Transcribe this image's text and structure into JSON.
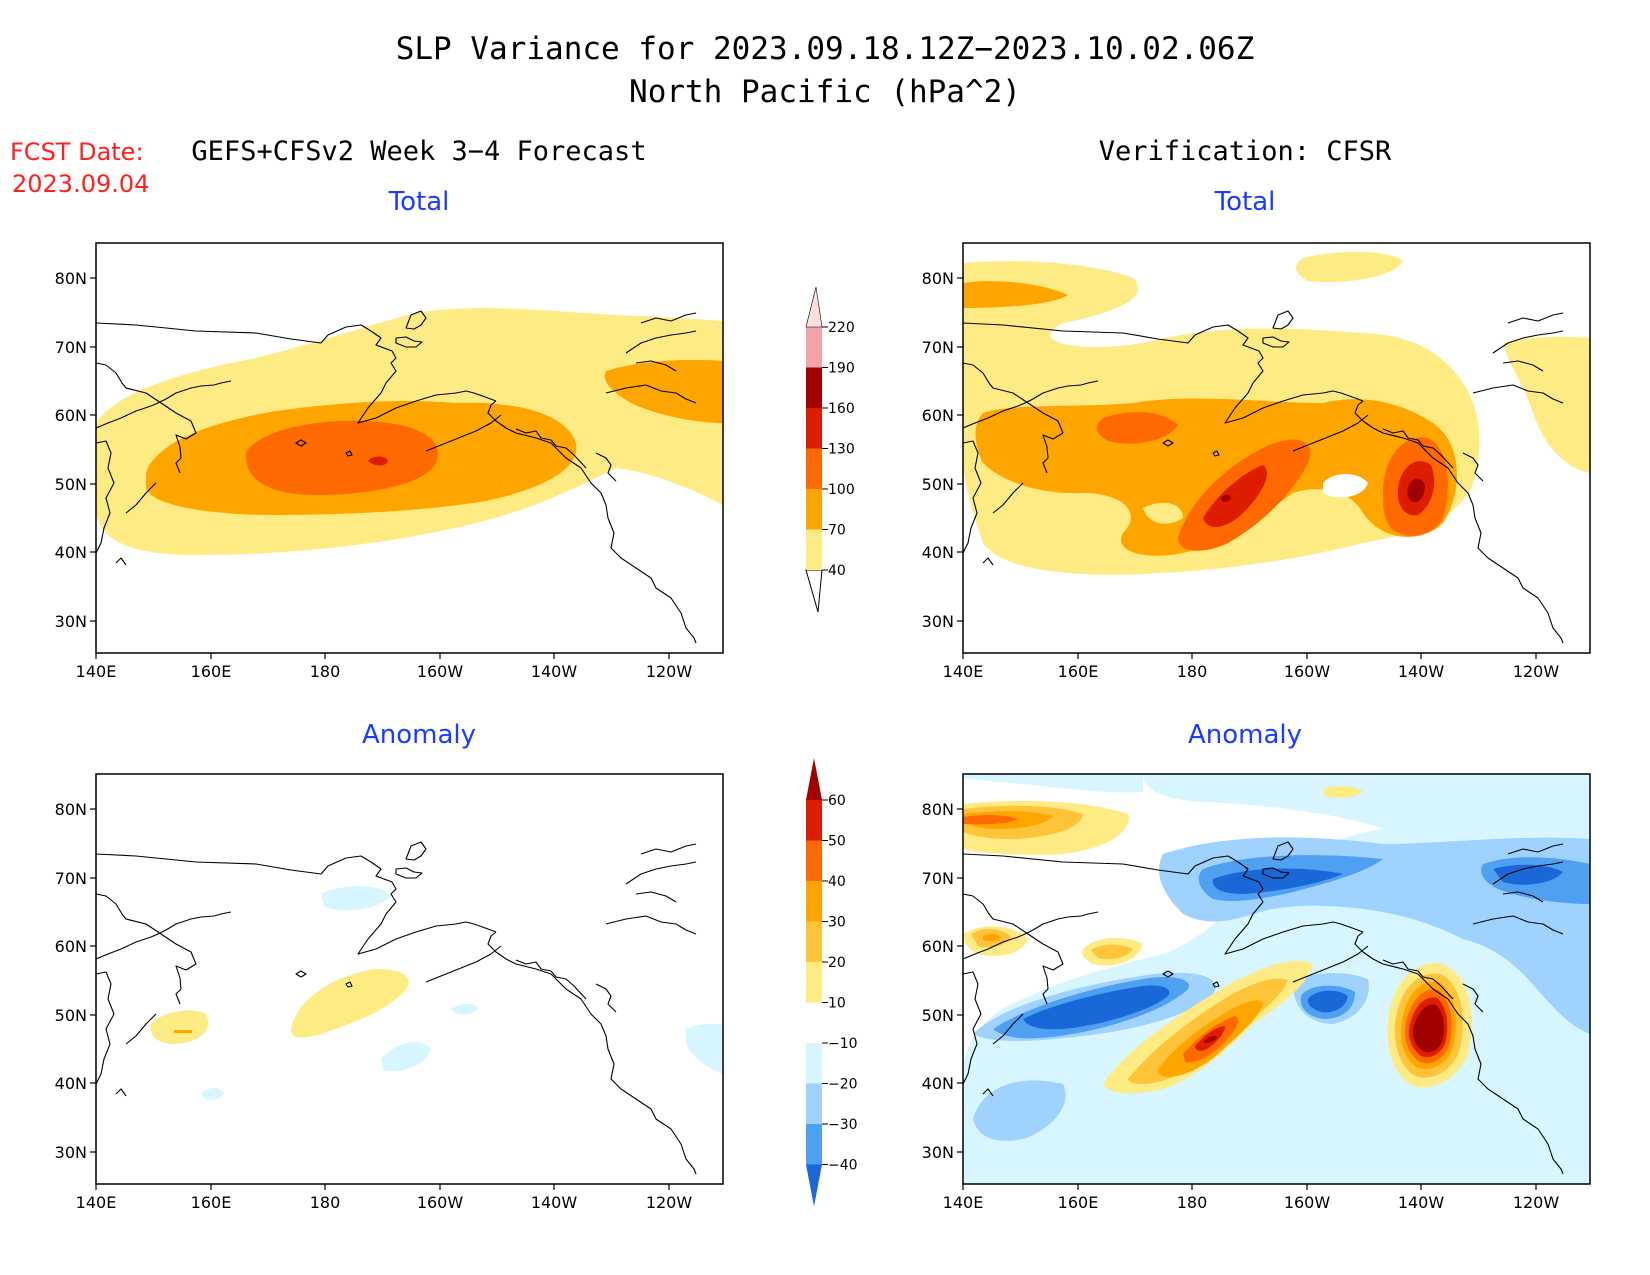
{
  "title": {
    "line1": "SLP Variance for 2023.09.18.12Z−2023.10.02.06Z",
    "line2": "North Pacific (hPa^2)"
  },
  "fcst_date": {
    "label": "FCST Date:",
    "value": "2023.09.04"
  },
  "columns": {
    "left": "GEFS+CFSv2 Week 3−4 Forecast",
    "right": "Verification: CFSR"
  },
  "panels": {
    "top_left": "Total",
    "top_right": "Total",
    "bottom_left": "Anomaly",
    "bottom_right": "Anomaly"
  },
  "axes": {
    "lon_ticks": [
      "140E",
      "160E",
      "180",
      "160W",
      "140W",
      "120W"
    ],
    "lat_ticks": [
      "80N",
      "70N",
      "60N",
      "50N",
      "40N",
      "30N"
    ]
  },
  "colorbar_total": {
    "labels": [
      "40",
      "70",
      "100",
      "130",
      "160",
      "190",
      "220"
    ],
    "colors": [
      "#ffeb84",
      "#ffa500",
      "#ff6a00",
      "#dd1c00",
      "#a00000",
      "#f4a3a8",
      "#ffe0e0"
    ]
  },
  "colorbar_anomaly": {
    "labels": [
      "60",
      "50",
      "40",
      "30",
      "20",
      "10",
      "−10",
      "−20",
      "−30",
      "−40"
    ],
    "colors": [
      "#a00000",
      "#dd1c00",
      "#ff6a00",
      "#ffa500",
      "#ffc43a",
      "#ffeb84",
      "#ffffff",
      "#d8f6ff",
      "#a0d2ff",
      "#4fa0f0",
      "#1a68d8"
    ]
  }
}
